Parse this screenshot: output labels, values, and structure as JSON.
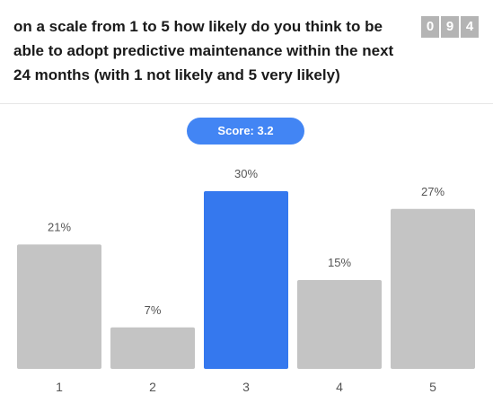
{
  "question": "on a scale from 1 to 5 how likely do you think to be able to adopt predictive maintenance within the next 24 months (with 1 not likely and 5 very likely)",
  "counter_digits": [
    "0",
    "9",
    "4"
  ],
  "score_label": "Score: 3.2",
  "colors": {
    "bar_default": "#c4c4c4",
    "bar_highlight": "#3578ee",
    "score_pill": "#4285f4"
  },
  "chart_data": {
    "type": "bar",
    "categories": [
      "1",
      "2",
      "3",
      "4",
      "5"
    ],
    "values": [
      21,
      7,
      30,
      15,
      27
    ],
    "value_labels": [
      "21%",
      "7%",
      "30%",
      "15%",
      "27%"
    ],
    "highlight_index": 2,
    "title": "",
    "xlabel": "",
    "ylabel": "",
    "ylim": [
      0,
      30
    ],
    "grid": false
  }
}
